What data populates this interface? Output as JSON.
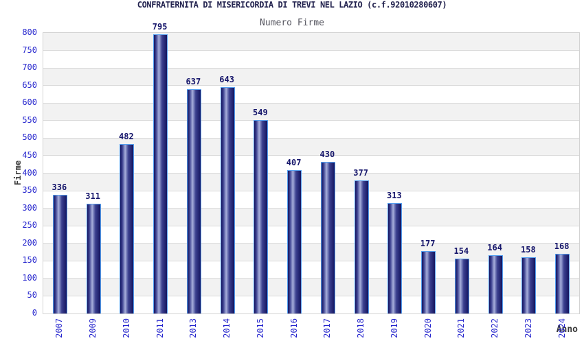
{
  "chart_data": {
    "type": "bar",
    "title": "CONFRATERNITA DI MISERICORDIA DI TREVI NEL LAZIO (c.f.92010280607)",
    "subtitle": "Numero Firme",
    "categories": [
      "2007",
      "2009",
      "2010",
      "2011",
      "2013",
      "2014",
      "2015",
      "2016",
      "2017",
      "2018",
      "2019",
      "2020",
      "2021",
      "2022",
      "2023",
      "2024"
    ],
    "values": [
      336,
      311,
      482,
      795,
      637,
      643,
      549,
      407,
      430,
      377,
      313,
      177,
      154,
      164,
      158,
      168
    ],
    "xlabel": "Anno",
    "ylabel": "Firme",
    "ylim": [
      0,
      800
    ],
    "ytick_step": 50,
    "grid": true,
    "legend_position": "none",
    "colors": {
      "title": "#23234f",
      "subtitle": "#55555f",
      "tick_label": "#2525cd",
      "axis_title": "#3a3a3a",
      "value_label": "#16166b",
      "band_gray": "#f2f2f2",
      "band_white": "#ffffff",
      "grid_line": "#dadada",
      "plot_border": "#d3d3d3",
      "bar_border": "#55a0f0",
      "bar_dark": "#14145f",
      "bar_mid": "#3c4190",
      "bar_light": "#a6aedb"
    }
  }
}
